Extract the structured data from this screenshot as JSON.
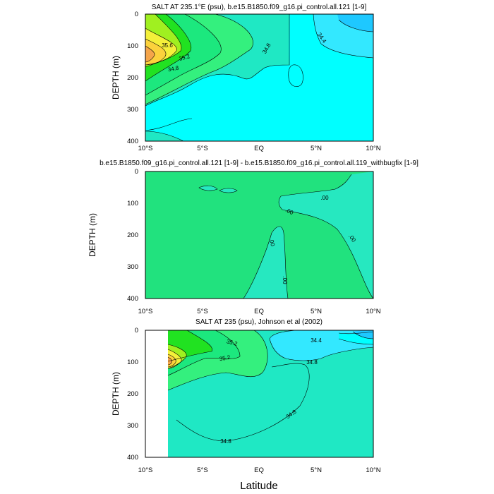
{
  "figure": {
    "xlabel": "Latitude",
    "colors": {
      "cyan": "#00ffff",
      "cyan_light": "#33e8ff",
      "aqua_mid": "#1ec8ff",
      "aquamarine": "#1fe8c4",
      "green_light": "#34f07e",
      "green": "#1ce87e",
      "green_bright": "#21e221",
      "yellow_green": "#a0f020",
      "yellow": "#f4f03a",
      "gold": "#fcd23c",
      "orange": "#f5a54a",
      "diff_green": "#21e27e",
      "diff_aqua": "#26e8c0"
    }
  },
  "chart_data": [
    {
      "type": "contour",
      "title": "SALT AT 235.1°E (psu), b.e15.B1850.f09_g16.pi_control.all.121 [1-9]",
      "xlabel": "",
      "ylabel": "DEPTH (m)",
      "xlim": [
        -10,
        10
      ],
      "ylim": [
        400,
        0
      ],
      "x_ticks": [
        -10,
        -5,
        0,
        5,
        10
      ],
      "x_tick_labels": [
        "10°S",
        "5°S",
        "EQ",
        "5°N",
        "10°N"
      ],
      "y_ticks": [
        0,
        100,
        200,
        300,
        400
      ],
      "y_tick_labels": [
        "0",
        "100",
        "200",
        "300",
        "400"
      ],
      "contour_labels": [
        "35.6",
        "35.2",
        "34.8",
        "34.8",
        "34.4"
      ]
    },
    {
      "type": "contour",
      "title": "b.e15.B1850.f09_g16.pi_control.all.121 [1-9] - b.e15.B1850.f09_g16.pi_control.all.119_withbugfix [1-9]",
      "xlabel": "",
      "ylabel": "DEPTH (m)",
      "xlim": [
        -10,
        10
      ],
      "ylim": [
        400,
        0
      ],
      "x_ticks": [
        -10,
        -5,
        0,
        5,
        10
      ],
      "x_tick_labels": [
        "10°S",
        "5°S",
        "EQ",
        "5°N",
        "10°N"
      ],
      "y_ticks": [
        0,
        100,
        200,
        300,
        400
      ],
      "y_tick_labels": [
        "0",
        "100",
        "200",
        "300",
        "400"
      ],
      "contour_labels": [
        ".00",
        ".00",
        ".00",
        ".00",
        ".00"
      ]
    },
    {
      "type": "contour",
      "title": "SALT AT 235 (psu), Johnson et al (2002)",
      "xlabel": "Latitude",
      "ylabel": "DEPTH (m)",
      "xlim": [
        -10,
        10
      ],
      "ylim": [
        400,
        0
      ],
      "x_ticks": [
        -10,
        -5,
        0,
        5,
        10
      ],
      "x_tick_labels": [
        "10°S",
        "5°S",
        "EQ",
        "5°N",
        "10°N"
      ],
      "y_ticks": [
        0,
        100,
        200,
        300,
        400
      ],
      "y_tick_labels": [
        "0",
        "100",
        "200",
        "300",
        "400"
      ],
      "data_xlim": [
        -8,
        10
      ],
      "contour_labels": [
        "35.2",
        "35.2",
        "34.4",
        "34.8",
        "34.8",
        "34.8"
      ]
    }
  ]
}
